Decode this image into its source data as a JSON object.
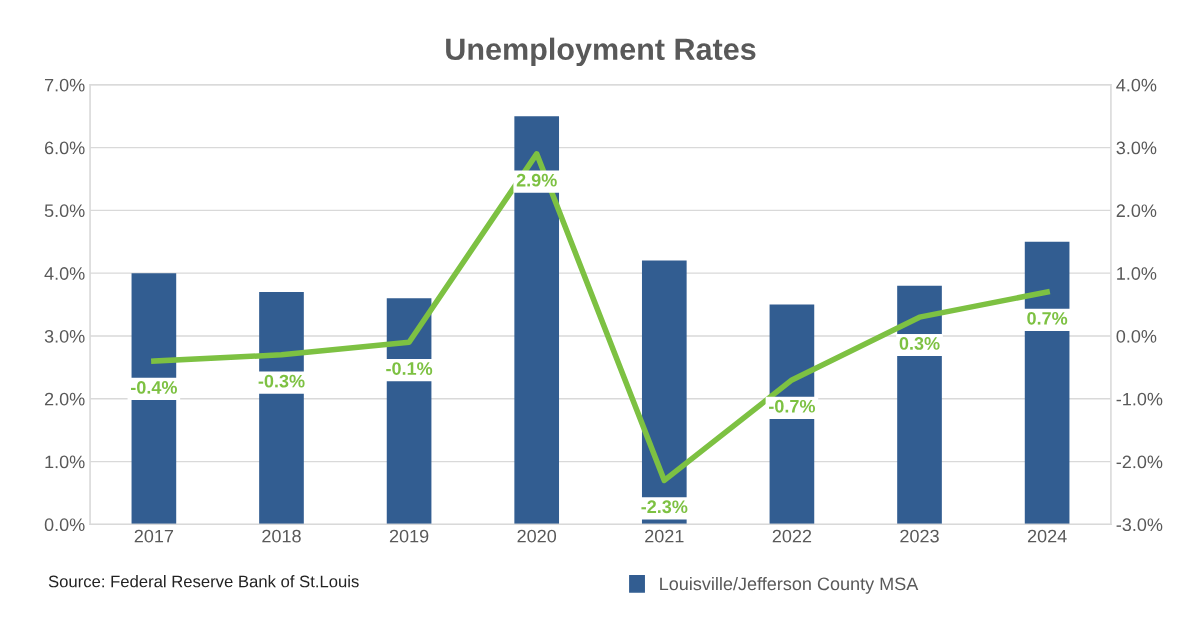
{
  "chart_data": {
    "type": "bar",
    "title": "Unemployment Rates",
    "categories": [
      "2017",
      "2018",
      "2019",
      "2020",
      "2021",
      "2022",
      "2023",
      "2024"
    ],
    "series": [
      {
        "name": "Louisville/Jefferson County MSA",
        "color": "#325d91",
        "values": [
          4.0,
          3.7,
          3.6,
          6.5,
          4.2,
          3.5,
          3.8,
          4.5
        ]
      },
      {
        "type": "line",
        "axis": "y2",
        "color": "#7dc142",
        "values": [
          -0.4,
          -0.3,
          -0.1,
          2.9,
          -2.3,
          -0.7,
          0.3,
          0.7
        ],
        "value_labels": [
          "-0.4%",
          "-0.3%",
          "-0.1%",
          "2.9%",
          "-2.3%",
          "-0.7%",
          "0.3%",
          "0.7%"
        ]
      }
    ],
    "ylim": [
      0,
      7
    ],
    "yticks": [
      {
        "value": 0,
        "label": "0.0%"
      },
      {
        "value": 1,
        "label": "1.0%"
      },
      {
        "value": 2,
        "label": "2.0%"
      },
      {
        "value": 3,
        "label": "3.0%"
      },
      {
        "value": 4,
        "label": "4.0%"
      },
      {
        "value": 5,
        "label": "5.0%"
      },
      {
        "value": 6,
        "label": "6.0%"
      },
      {
        "value": 7,
        "label": "7.0%"
      }
    ],
    "y2lim": [
      -3,
      4
    ],
    "y2ticks": [
      {
        "value": -3,
        "label": "-3.0%"
      },
      {
        "value": -2,
        "label": "-2.0%"
      },
      {
        "value": -1,
        "label": "-1.0%"
      },
      {
        "value": 0,
        "label": "0.0%"
      },
      {
        "value": 1,
        "label": "1.0%"
      },
      {
        "value": 2,
        "label": "2.0%"
      },
      {
        "value": 3,
        "label": "3.0%"
      },
      {
        "value": 4,
        "label": "4.0%"
      }
    ],
    "grid": "y",
    "legend": "bottom",
    "marker": "none",
    "line_style": "solid",
    "annotations": [
      "Source: Federal Reserve Bank of St.Louis"
    ]
  }
}
